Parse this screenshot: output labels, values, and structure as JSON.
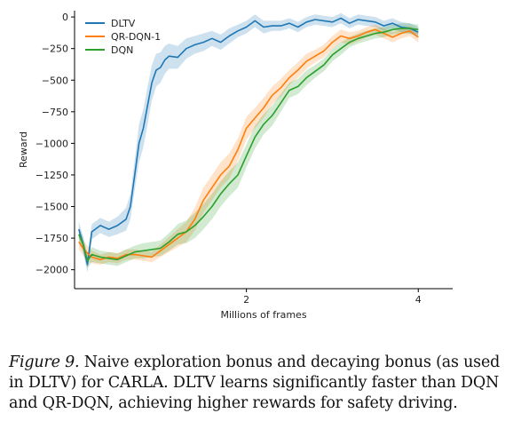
{
  "chart_data": {
    "type": "line",
    "title": "",
    "xlabel": "Millions of frames",
    "ylabel": "Reward",
    "xlim": [
      0,
      4.4
    ],
    "ylim": [
      -2150,
      50
    ],
    "xticks": [
      2,
      4
    ],
    "xtick_labels": [
      "2",
      "4"
    ],
    "yticks": [
      0,
      -250,
      -500,
      -750,
      -1000,
      -1250,
      -1500,
      -1750,
      -2000
    ],
    "ytick_labels": [
      "0",
      "−250",
      "−500",
      "−750",
      "−1000",
      "−1250",
      "−1500",
      "−1750",
      "−2000"
    ],
    "grid": false,
    "legend_position": "top-left",
    "series": [
      {
        "name": "DLTV",
        "color": "#1f77b4",
        "x": [
          0.05,
          0.1,
          0.15,
          0.2,
          0.3,
          0.4,
          0.5,
          0.6,
          0.65,
          0.7,
          0.75,
          0.8,
          0.85,
          0.9,
          0.95,
          1.0,
          1.05,
          1.1,
          1.2,
          1.3,
          1.4,
          1.5,
          1.6,
          1.7,
          1.8,
          1.9,
          2.0,
          2.1,
          2.2,
          2.3,
          2.4,
          2.5,
          2.6,
          2.7,
          2.8,
          2.9,
          3.0,
          3.1,
          3.2,
          3.3,
          3.4,
          3.5,
          3.6,
          3.7,
          3.8,
          3.9,
          4.0
        ],
        "y": [
          -1680,
          -1800,
          -1960,
          -1700,
          -1650,
          -1680,
          -1650,
          -1600,
          -1500,
          -1250,
          -1000,
          -880,
          -700,
          -520,
          -420,
          -400,
          -340,
          -310,
          -320,
          -250,
          -220,
          -200,
          -170,
          -200,
          -150,
          -110,
          -80,
          -30,
          -80,
          -70,
          -70,
          -50,
          -80,
          -40,
          -20,
          -30,
          -40,
          -10,
          -50,
          -20,
          -30,
          -40,
          -70,
          -50,
          -80,
          -90,
          -120
        ],
        "band": [
          60,
          60,
          60,
          60,
          60,
          60,
          70,
          90,
          100,
          120,
          150,
          150,
          150,
          140,
          130,
          120,
          110,
          100,
          90,
          80,
          70,
          70,
          60,
          60,
          60,
          50,
          50,
          50,
          50,
          40,
          40,
          40,
          40,
          40,
          40,
          40,
          40,
          40,
          40,
          40,
          40,
          40,
          40,
          40,
          40,
          40,
          40
        ]
      },
      {
        "name": "QR-DQN-1",
        "color": "#ff7f0e",
        "x": [
          0.05,
          0.1,
          0.15,
          0.2,
          0.3,
          0.4,
          0.5,
          0.6,
          0.7,
          0.8,
          0.9,
          1.0,
          1.1,
          1.2,
          1.3,
          1.4,
          1.5,
          1.6,
          1.7,
          1.8,
          1.9,
          2.0,
          2.1,
          2.2,
          2.3,
          2.4,
          2.5,
          2.6,
          2.7,
          2.8,
          2.9,
          3.0,
          3.1,
          3.2,
          3.3,
          3.4,
          3.5,
          3.6,
          3.7,
          3.8,
          3.9,
          4.0
        ],
        "y": [
          -1780,
          -1830,
          -1870,
          -1900,
          -1920,
          -1900,
          -1910,
          -1880,
          -1880,
          -1890,
          -1900,
          -1850,
          -1800,
          -1750,
          -1700,
          -1600,
          -1450,
          -1350,
          -1250,
          -1180,
          -1050,
          -880,
          -800,
          -720,
          -620,
          -560,
          -480,
          -420,
          -350,
          -310,
          -270,
          -200,
          -150,
          -170,
          -150,
          -120,
          -100,
          -130,
          -160,
          -130,
          -110,
          -160
        ],
        "band": [
          60,
          60,
          60,
          50,
          40,
          40,
          40,
          40,
          40,
          40,
          40,
          50,
          60,
          70,
          80,
          90,
          100,
          100,
          100,
          100,
          90,
          90,
          80,
          80,
          70,
          70,
          60,
          60,
          60,
          50,
          50,
          50,
          50,
          50,
          40,
          40,
          40,
          40,
          40,
          40,
          40,
          40
        ]
      },
      {
        "name": "DQN",
        "color": "#2ca02c",
        "x": [
          0.05,
          0.1,
          0.15,
          0.2,
          0.3,
          0.4,
          0.5,
          0.6,
          0.7,
          0.8,
          0.9,
          1.0,
          1.1,
          1.2,
          1.3,
          1.4,
          1.5,
          1.6,
          1.7,
          1.8,
          1.9,
          2.0,
          2.1,
          2.2,
          2.3,
          2.4,
          2.5,
          2.6,
          2.7,
          2.8,
          2.9,
          3.0,
          3.1,
          3.2,
          3.3,
          3.4,
          3.5,
          3.6,
          3.7,
          3.8,
          3.9,
          4.0
        ],
        "y": [
          -1720,
          -1800,
          -1930,
          -1880,
          -1900,
          -1910,
          -1920,
          -1890,
          -1860,
          -1850,
          -1840,
          -1830,
          -1780,
          -1720,
          -1700,
          -1650,
          -1580,
          -1500,
          -1400,
          -1320,
          -1250,
          -1100,
          -950,
          -850,
          -780,
          -680,
          -580,
          -550,
          -480,
          -430,
          -380,
          -300,
          -250,
          -200,
          -170,
          -150,
          -130,
          -120,
          -100,
          -90,
          -90,
          -100
        ],
        "band": [
          60,
          60,
          60,
          60,
          50,
          50,
          50,
          50,
          50,
          60,
          60,
          60,
          70,
          80,
          90,
          100,
          100,
          100,
          100,
          100,
          100,
          90,
          90,
          80,
          80,
          70,
          60,
          60,
          60,
          50,
          50,
          50,
          50,
          40,
          40,
          40,
          40,
          40,
          40,
          40,
          40,
          40
        ]
      }
    ]
  },
  "caption": {
    "figure_label": "Figure 9.",
    "text": " Naive exploration bonus and decaying bonus (as used in DLTV) for CARLA. DLTV learns significantly faster than DQN and QR-DQN, achieving higher rewards for safety driving."
  }
}
